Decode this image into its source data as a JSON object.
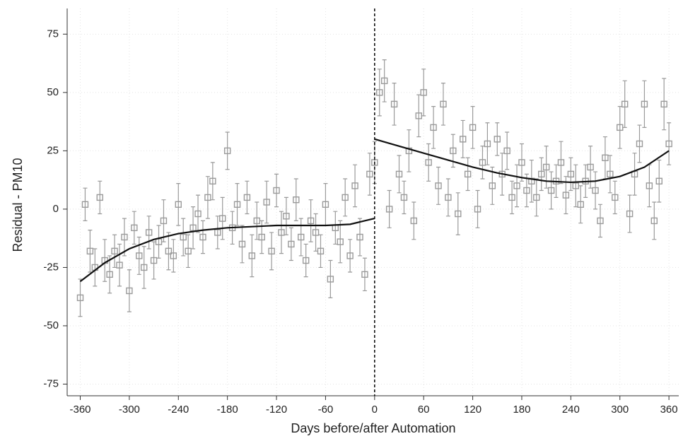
{
  "chart_data": {
    "type": "scatter",
    "x_label": "Days before/after Automation",
    "y_label": "Residual - PM10",
    "xlim": [
      -376,
      372
    ],
    "ylim": [
      -80,
      86
    ],
    "xticks": [
      -360,
      -300,
      -240,
      -180,
      -120,
      -60,
      0,
      60,
      120,
      180,
      240,
      300,
      360
    ],
    "yticks": [
      -75,
      -50,
      -25,
      0,
      25,
      50,
      75
    ],
    "grid": true,
    "cutoff": 0,
    "color": "#9a9a9a",
    "x": [
      -360,
      -354,
      -348,
      -342,
      -336,
      -330,
      -324,
      -318,
      -312,
      -306,
      -300,
      -294,
      -288,
      -282,
      -276,
      -270,
      -264,
      -258,
      -252,
      -246,
      -240,
      -234,
      -228,
      -222,
      -216,
      -210,
      -204,
      -198,
      -192,
      -186,
      -180,
      -174,
      -168,
      -162,
      -156,
      -150,
      -144,
      -138,
      -132,
      -126,
      -120,
      -114,
      -108,
      -102,
      -96,
      -90,
      -84,
      -78,
      -72,
      -66,
      -60,
      -54,
      -48,
      -42,
      -36,
      -30,
      -24,
      -18,
      -12,
      -6,
      0,
      6,
      12,
      18,
      24,
      30,
      36,
      42,
      48,
      54,
      60,
      66,
      72,
      78,
      84,
      90,
      96,
      102,
      108,
      114,
      120,
      126,
      132,
      138,
      144,
      150,
      156,
      162,
      168,
      174,
      180,
      186,
      192,
      198,
      204,
      210,
      216,
      222,
      228,
      234,
      240,
      246,
      252,
      258,
      264,
      270,
      276,
      282,
      288,
      294,
      300,
      306,
      312,
      318,
      324,
      330,
      336,
      342,
      348,
      354,
      360
    ],
    "values": [
      -38,
      2,
      -18,
      -25,
      5,
      -22,
      -28,
      -18,
      -24,
      -12,
      -35,
      -8,
      -20,
      -25,
      -10,
      -22,
      -14,
      -5,
      -18,
      -20,
      2,
      -12,
      -18,
      -8,
      -2,
      -12,
      5,
      12,
      -10,
      -4,
      25,
      -8,
      2,
      -15,
      5,
      -20,
      -5,
      -12,
      3,
      -18,
      8,
      -10,
      -3,
      -15,
      4,
      -12,
      -22,
      -5,
      -10,
      -18,
      2,
      -30,
      -8,
      -14,
      5,
      -20,
      10,
      -12,
      -28,
      15,
      20,
      50,
      55,
      0,
      45,
      15,
      5,
      25,
      -5,
      40,
      50,
      20,
      35,
      10,
      45,
      5,
      25,
      -2,
      30,
      15,
      35,
      0,
      20,
      28,
      10,
      30,
      15,
      25,
      5,
      10,
      20,
      8,
      12,
      5,
      15,
      18,
      8,
      12,
      20,
      6,
      15,
      10,
      2,
      12,
      18,
      8,
      -5,
      22,
      15,
      5,
      35,
      45,
      -2,
      15,
      28,
      45,
      10,
      -5,
      12,
      45,
      28
    ],
    "errors": [
      8,
      7,
      9,
      8,
      7,
      9,
      8,
      7,
      9,
      8,
      9,
      7,
      8,
      9,
      7,
      8,
      7,
      9,
      8,
      7,
      9,
      8,
      7,
      9,
      8,
      7,
      9,
      8,
      7,
      9,
      8,
      7,
      9,
      8,
      7,
      9,
      8,
      7,
      9,
      8,
      7,
      9,
      8,
      7,
      9,
      8,
      7,
      9,
      8,
      7,
      9,
      8,
      7,
      9,
      8,
      7,
      9,
      8,
      7,
      9,
      9,
      10,
      9,
      8,
      9,
      8,
      7,
      9,
      8,
      9,
      10,
      8,
      9,
      8,
      9,
      8,
      7,
      9,
      8,
      7,
      9,
      8,
      7,
      9,
      8,
      7,
      9,
      8,
      7,
      9,
      8,
      7,
      9,
      8,
      7,
      9,
      8,
      7,
      9,
      8,
      7,
      9,
      8,
      7,
      9,
      8,
      7,
      9,
      8,
      7,
      9,
      10,
      8,
      9,
      8,
      10,
      9,
      8,
      9,
      11,
      9
    ],
    "fits": [
      {
        "color": "#111",
        "x": [
          -360,
          -330,
          -300,
          -270,
          -240,
          -210,
          -180,
          -150,
          -120,
          -90,
          -60,
          -30,
          0
        ],
        "values": [
          -31,
          -23,
          -17,
          -13,
          -10.5,
          -9,
          -8,
          -7.5,
          -7,
          -7,
          -7,
          -6.5,
          -4
        ]
      },
      {
        "color": "#111",
        "x": [
          0,
          30,
          60,
          90,
          120,
          150,
          180,
          210,
          240,
          270,
          300,
          330,
          360
        ],
        "values": [
          30,
          27,
          24,
          21,
          18,
          15.5,
          13.5,
          12,
          11.5,
          12,
          14,
          18,
          25
        ]
      }
    ]
  }
}
